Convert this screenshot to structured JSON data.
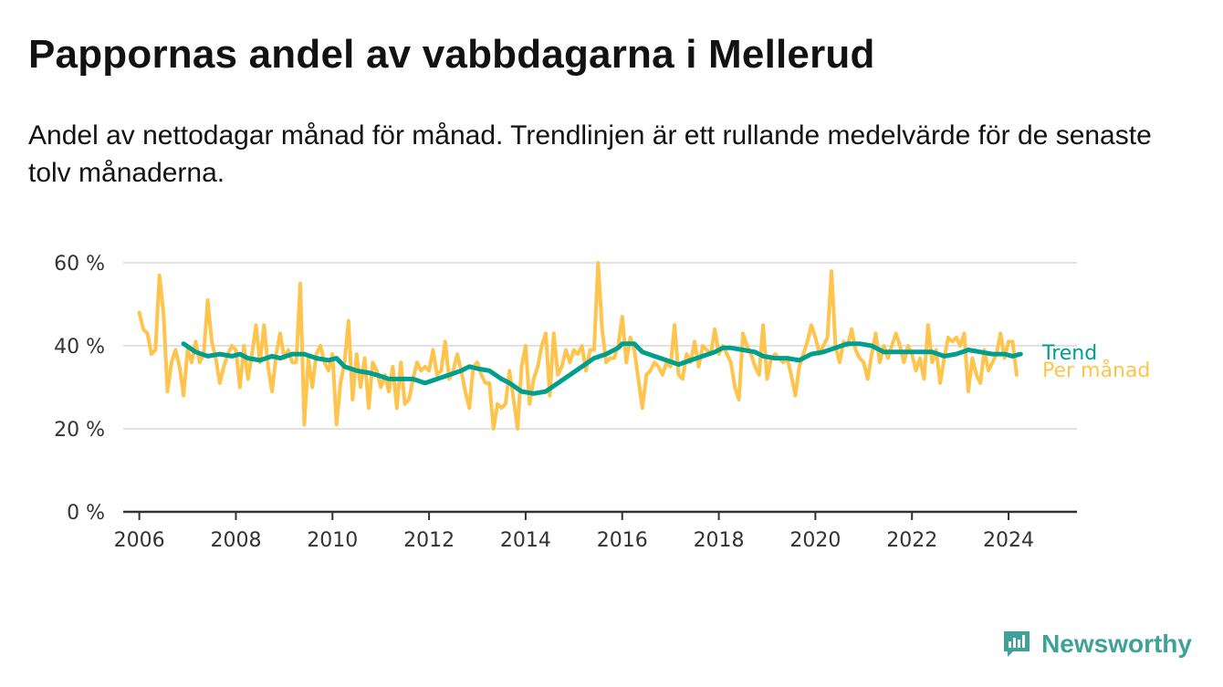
{
  "header": {
    "title": "Pappornas andel av vabbdagarna i Mellerud",
    "subtitle": "Andel av nettodagar månad för månad. Trendlinjen är ett rullande medelvärde för de senaste tolv månaderna."
  },
  "brand": {
    "name": "Newsworthy",
    "icon": "newsworthy-logo-icon"
  },
  "colors": {
    "monthly": "#ffc44d",
    "trend": "#009e8c",
    "grid": "#d9d9d9",
    "axis": "#333333"
  },
  "chart_data": {
    "type": "line",
    "x_axis": {
      "range": [
        "2005-09",
        "2025-06"
      ],
      "ticks": [
        "2006",
        "2008",
        "2010",
        "2012",
        "2014",
        "2016",
        "2018",
        "2020",
        "2022",
        "2024"
      ]
    },
    "y_axis": {
      "range": [
        0,
        60
      ],
      "ticks": [
        0,
        20,
        40,
        60
      ],
      "tick_labels": [
        "0 %",
        "20 %",
        "40 %",
        "60 %"
      ],
      "grid": true
    },
    "series": [
      {
        "name": "Per månad",
        "color": "#ffc44d",
        "points": [
          [
            "2006-01",
            48
          ],
          [
            "2006-02",
            44
          ],
          [
            "2006-03",
            43
          ],
          [
            "2006-04",
            38
          ],
          [
            "2006-05",
            39
          ],
          [
            "2006-06",
            57
          ],
          [
            "2006-07",
            48
          ],
          [
            "2006-08",
            29
          ],
          [
            "2006-09",
            36
          ],
          [
            "2006-10",
            39
          ],
          [
            "2006-11",
            35
          ],
          [
            "2006-12",
            28
          ],
          [
            "2007-01",
            39
          ],
          [
            "2007-02",
            36
          ],
          [
            "2007-03",
            41
          ],
          [
            "2007-04",
            36
          ],
          [
            "2007-05",
            38
          ],
          [
            "2007-06",
            51
          ],
          [
            "2007-07",
            41
          ],
          [
            "2007-08",
            37
          ],
          [
            "2007-09",
            31
          ],
          [
            "2007-10",
            35
          ],
          [
            "2007-11",
            38
          ],
          [
            "2007-12",
            40
          ],
          [
            "2008-01",
            39
          ],
          [
            "2008-02",
            30
          ],
          [
            "2008-03",
            40
          ],
          [
            "2008-04",
            32
          ],
          [
            "2008-05",
            38
          ],
          [
            "2008-06",
            45
          ],
          [
            "2008-07",
            36
          ],
          [
            "2008-08",
            45
          ],
          [
            "2008-09",
            35
          ],
          [
            "2008-10",
            29
          ],
          [
            "2008-11",
            38
          ],
          [
            "2008-12",
            43
          ],
          [
            "2009-01",
            37
          ],
          [
            "2009-02",
            39
          ],
          [
            "2009-03",
            36
          ],
          [
            "2009-04",
            36
          ],
          [
            "2009-05",
            55
          ],
          [
            "2009-06",
            21
          ],
          [
            "2009-07",
            37
          ],
          [
            "2009-08",
            30
          ],
          [
            "2009-09",
            38
          ],
          [
            "2009-10",
            40
          ],
          [
            "2009-11",
            36
          ],
          [
            "2009-12",
            34
          ],
          [
            "2010-01",
            38
          ],
          [
            "2010-02",
            21
          ],
          [
            "2010-03",
            31
          ],
          [
            "2010-04",
            36
          ],
          [
            "2010-05",
            46
          ],
          [
            "2010-06",
            27
          ],
          [
            "2010-07",
            38
          ],
          [
            "2010-08",
            30
          ],
          [
            "2010-09",
            37
          ],
          [
            "2010-10",
            25
          ],
          [
            "2010-11",
            36
          ],
          [
            "2010-12",
            34
          ],
          [
            "2011-01",
            30
          ],
          [
            "2011-02",
            33
          ],
          [
            "2011-03",
            29
          ],
          [
            "2011-04",
            35
          ],
          [
            "2011-05",
            25
          ],
          [
            "2011-06",
            36
          ],
          [
            "2011-07",
            26
          ],
          [
            "2011-08",
            27
          ],
          [
            "2011-09",
            32
          ],
          [
            "2011-10",
            36
          ],
          [
            "2011-11",
            34
          ],
          [
            "2011-12",
            35
          ],
          [
            "2012-01",
            34
          ],
          [
            "2012-02",
            39
          ],
          [
            "2012-03",
            33
          ],
          [
            "2012-04",
            34
          ],
          [
            "2012-05",
            41
          ],
          [
            "2012-06",
            32
          ],
          [
            "2012-07",
            34
          ],
          [
            "2012-08",
            38
          ],
          [
            "2012-09",
            34
          ],
          [
            "2012-10",
            29
          ],
          [
            "2012-11",
            25
          ],
          [
            "2012-12",
            35
          ],
          [
            "2013-01",
            36
          ],
          [
            "2013-02",
            33
          ],
          [
            "2013-03",
            31
          ],
          [
            "2013-04",
            31
          ],
          [
            "2013-05",
            20
          ],
          [
            "2013-06",
            26
          ],
          [
            "2013-07",
            25
          ],
          [
            "2013-08",
            26
          ],
          [
            "2013-09",
            34
          ],
          [
            "2013-10",
            27
          ],
          [
            "2013-11",
            20
          ],
          [
            "2013-12",
            35
          ],
          [
            "2014-01",
            40
          ],
          [
            "2014-02",
            26
          ],
          [
            "2014-03",
            32
          ],
          [
            "2014-04",
            35
          ],
          [
            "2014-05",
            40
          ],
          [
            "2014-06",
            43
          ],
          [
            "2014-07",
            28
          ],
          [
            "2014-08",
            43
          ],
          [
            "2014-09",
            33
          ],
          [
            "2014-10",
            35
          ],
          [
            "2014-11",
            39
          ],
          [
            "2014-12",
            36
          ],
          [
            "2015-01",
            39
          ],
          [
            "2015-02",
            38
          ],
          [
            "2015-03",
            40
          ],
          [
            "2015-04",
            34
          ],
          [
            "2015-05",
            39
          ],
          [
            "2015-06",
            39
          ],
          [
            "2015-07",
            60
          ],
          [
            "2015-08",
            44
          ],
          [
            "2015-09",
            36
          ],
          [
            "2015-10",
            37
          ],
          [
            "2015-11",
            37
          ],
          [
            "2015-12",
            40
          ],
          [
            "2016-01",
            47
          ],
          [
            "2016-02",
            36
          ],
          [
            "2016-03",
            42
          ],
          [
            "2016-04",
            39
          ],
          [
            "2016-05",
            32
          ],
          [
            "2016-06",
            25
          ],
          [
            "2016-07",
            33
          ],
          [
            "2016-08",
            34
          ],
          [
            "2016-09",
            36
          ],
          [
            "2016-10",
            35
          ],
          [
            "2016-11",
            33
          ],
          [
            "2016-12",
            36
          ],
          [
            "2017-01",
            35
          ],
          [
            "2017-02",
            45
          ],
          [
            "2017-03",
            33
          ],
          [
            "2017-04",
            32
          ],
          [
            "2017-05",
            38
          ],
          [
            "2017-06",
            36
          ],
          [
            "2017-07",
            41
          ],
          [
            "2017-08",
            35
          ],
          [
            "2017-09",
            40
          ],
          [
            "2017-10",
            39
          ],
          [
            "2017-11",
            38
          ],
          [
            "2017-12",
            44
          ],
          [
            "2018-01",
            38
          ],
          [
            "2018-02",
            40
          ],
          [
            "2018-03",
            38
          ],
          [
            "2018-04",
            36
          ],
          [
            "2018-05",
            30
          ],
          [
            "2018-06",
            27
          ],
          [
            "2018-07",
            43
          ],
          [
            "2018-08",
            40
          ],
          [
            "2018-09",
            38
          ],
          [
            "2018-10",
            35
          ],
          [
            "2018-11",
            33
          ],
          [
            "2018-12",
            45
          ],
          [
            "2019-01",
            32
          ],
          [
            "2019-02",
            37
          ],
          [
            "2019-03",
            38
          ],
          [
            "2019-04",
            37
          ],
          [
            "2019-05",
            36
          ],
          [
            "2019-06",
            37
          ],
          [
            "2019-07",
            33
          ],
          [
            "2019-08",
            28
          ],
          [
            "2019-09",
            35
          ],
          [
            "2019-10",
            38
          ],
          [
            "2019-11",
            41
          ],
          [
            "2019-12",
            45
          ],
          [
            "2020-01",
            42
          ],
          [
            "2020-02",
            38
          ],
          [
            "2020-03",
            40
          ],
          [
            "2020-04",
            42
          ],
          [
            "2020-05",
            58
          ],
          [
            "2020-06",
            40
          ],
          [
            "2020-07",
            36
          ],
          [
            "2020-08",
            41
          ],
          [
            "2020-09",
            40
          ],
          [
            "2020-10",
            44
          ],
          [
            "2020-11",
            39
          ],
          [
            "2020-12",
            37
          ],
          [
            "2021-01",
            36
          ],
          [
            "2021-02",
            32
          ],
          [
            "2021-03",
            38
          ],
          [
            "2021-04",
            43
          ],
          [
            "2021-05",
            36
          ],
          [
            "2021-06",
            40
          ],
          [
            "2021-07",
            37
          ],
          [
            "2021-08",
            40
          ],
          [
            "2021-09",
            43
          ],
          [
            "2021-10",
            40
          ],
          [
            "2021-11",
            36
          ],
          [
            "2021-12",
            40
          ],
          [
            "2022-01",
            38
          ],
          [
            "2022-02",
            34
          ],
          [
            "2022-03",
            37
          ],
          [
            "2022-04",
            32
          ],
          [
            "2022-05",
            45
          ],
          [
            "2022-06",
            36
          ],
          [
            "2022-07",
            39
          ],
          [
            "2022-08",
            31
          ],
          [
            "2022-09",
            37
          ],
          [
            "2022-10",
            42
          ],
          [
            "2022-11",
            41
          ],
          [
            "2022-12",
            42
          ],
          [
            "2023-01",
            40
          ],
          [
            "2023-02",
            43
          ],
          [
            "2023-03",
            29
          ],
          [
            "2023-04",
            37
          ],
          [
            "2023-05",
            33
          ],
          [
            "2023-06",
            31
          ],
          [
            "2023-07",
            39
          ],
          [
            "2023-08",
            34
          ],
          [
            "2023-09",
            36
          ],
          [
            "2023-10",
            38
          ],
          [
            "2023-11",
            43
          ],
          [
            "2023-12",
            37
          ],
          [
            "2024-01",
            41
          ],
          [
            "2024-02",
            41
          ],
          [
            "2024-03",
            33
          ]
        ]
      },
      {
        "name": "Trend",
        "color": "#009e8c",
        "points": [
          [
            "2006-12",
            40.5
          ],
          [
            "2007-03",
            38.5
          ],
          [
            "2007-06",
            37.5
          ],
          [
            "2007-09",
            38
          ],
          [
            "2007-12",
            37.5
          ],
          [
            "2008-02",
            38
          ],
          [
            "2008-04",
            37
          ],
          [
            "2008-07",
            36.5
          ],
          [
            "2008-10",
            37.5
          ],
          [
            "2008-12",
            37
          ],
          [
            "2009-03",
            38
          ],
          [
            "2009-06",
            38
          ],
          [
            "2009-09",
            37
          ],
          [
            "2009-12",
            36.5
          ],
          [
            "2010-02",
            37
          ],
          [
            "2010-04",
            35
          ],
          [
            "2010-07",
            34
          ],
          [
            "2010-10",
            33.5
          ],
          [
            "2010-12",
            33
          ],
          [
            "2011-03",
            32
          ],
          [
            "2011-06",
            32
          ],
          [
            "2011-09",
            32
          ],
          [
            "2011-12",
            31
          ],
          [
            "2012-03",
            32
          ],
          [
            "2012-06",
            33
          ],
          [
            "2012-09",
            34
          ],
          [
            "2012-11",
            35
          ],
          [
            "2013-01",
            34.5
          ],
          [
            "2013-04",
            34
          ],
          [
            "2013-07",
            32
          ],
          [
            "2013-09",
            31
          ],
          [
            "2013-12",
            29
          ],
          [
            "2014-03",
            28.5
          ],
          [
            "2014-06",
            29
          ],
          [
            "2014-09",
            31
          ],
          [
            "2014-12",
            33
          ],
          [
            "2015-03",
            35
          ],
          [
            "2015-06",
            37
          ],
          [
            "2015-09",
            38
          ],
          [
            "2015-12",
            39.5
          ],
          [
            "2016-01",
            40.5
          ],
          [
            "2016-04",
            40.5
          ],
          [
            "2016-06",
            38.5
          ],
          [
            "2016-09",
            37.5
          ],
          [
            "2016-12",
            36.5
          ],
          [
            "2017-03",
            35.5
          ],
          [
            "2017-06",
            36.5
          ],
          [
            "2017-09",
            37.5
          ],
          [
            "2017-12",
            38.5
          ],
          [
            "2018-02",
            39.5
          ],
          [
            "2018-04",
            39.5
          ],
          [
            "2018-07",
            39
          ],
          [
            "2018-10",
            38.5
          ],
          [
            "2018-12",
            37.5
          ],
          [
            "2019-03",
            37
          ],
          [
            "2019-06",
            37
          ],
          [
            "2019-09",
            36.5
          ],
          [
            "2019-12",
            38
          ],
          [
            "2020-03",
            38.5
          ],
          [
            "2020-06",
            39.5
          ],
          [
            "2020-09",
            40.5
          ],
          [
            "2020-12",
            40.5
          ],
          [
            "2021-03",
            40
          ],
          [
            "2021-06",
            38.5
          ],
          [
            "2021-09",
            38.5
          ],
          [
            "2021-12",
            38.5
          ],
          [
            "2022-03",
            38.5
          ],
          [
            "2022-06",
            38.5
          ],
          [
            "2022-09",
            37.5
          ],
          [
            "2022-12",
            38
          ],
          [
            "2023-03",
            39
          ],
          [
            "2023-06",
            38.5
          ],
          [
            "2023-09",
            38
          ],
          [
            "2023-12",
            38
          ],
          [
            "2024-02",
            37.5
          ],
          [
            "2024-04",
            38
          ]
        ]
      }
    ]
  }
}
